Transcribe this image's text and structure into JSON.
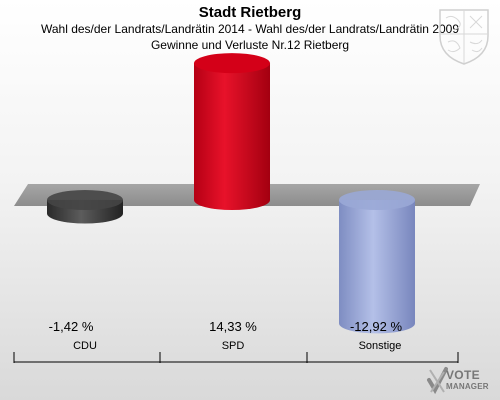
{
  "header": {
    "title": "Stadt Rietberg",
    "subtitle_line1": "Wahl des/der Landrats/Landrätin 2014 - Wahl des/der Landrats/Landrätin 2009",
    "subtitle_line2": "Gewinne und Verluste Nr.12 Rietberg"
  },
  "chart_data": {
    "type": "bar",
    "title": "Stadt Rietberg",
    "subtitle": "Wahl des/der Landrats/Landrätin 2014 - Wahl des/der Landrats/Landrätin 2009 / Gewinne und Verluste Nr.12 Rietberg",
    "categories": [
      "CDU",
      "SPD",
      "Sonstige"
    ],
    "values": [
      -1.42,
      14.33,
      -12.92
    ],
    "value_labels": [
      "-1,42 %",
      "14,33 %",
      "-12,92 %"
    ],
    "colors": [
      "#454545",
      "#d40018",
      "#9aa8d6"
    ],
    "unit": "%",
    "ylim": [
      -15,
      15
    ],
    "legend": "none",
    "grid": false
  },
  "logo": {
    "line1": "VOTE",
    "line2": "MANAGER",
    "icon": "checkmark-x-icon"
  },
  "crest_icon": "coat-of-arms-icon"
}
